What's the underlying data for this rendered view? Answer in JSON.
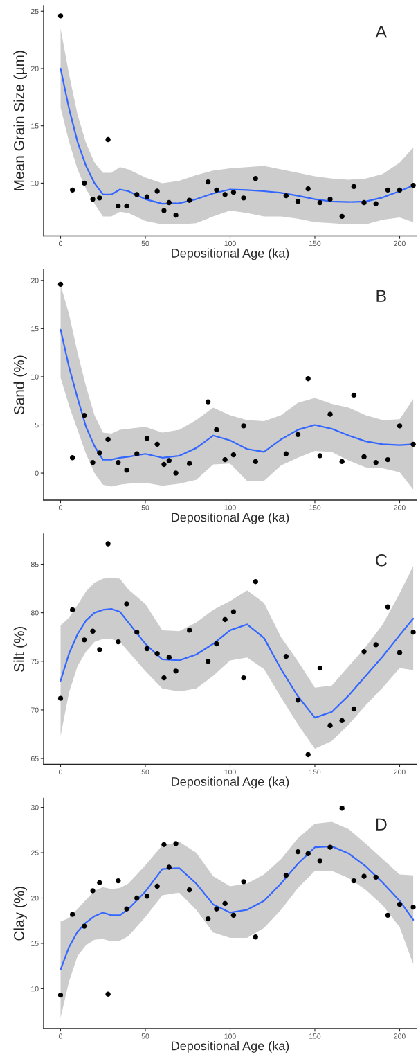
{
  "chart_data": [
    {
      "type": "scatter",
      "xlabel": "Depositional Age (ka)",
      "ylabel": "Mean Grain Size (µm)",
      "annotations": [
        "A"
      ],
      "xlim": [
        -10,
        210
      ],
      "ylim": [
        5.4,
        25.5
      ],
      "xticks": [
        0,
        50,
        100,
        150,
        200
      ],
      "yticks": [
        10,
        15,
        20,
        25
      ],
      "grid": false,
      "series": [
        {
          "type": "line",
          "color": "#3366ff",
          "x": [
            0,
            5,
            10,
            15,
            20,
            25,
            30,
            35,
            40,
            50,
            60,
            70,
            80,
            90,
            100,
            110,
            120,
            130,
            140,
            150,
            160,
            170,
            180,
            190,
            200,
            208
          ],
          "values": [
            20.0,
            16.5,
            13.6,
            11.5,
            10.0,
            9.0,
            9.0,
            9.45,
            9.3,
            8.6,
            8.2,
            8.25,
            8.6,
            9.1,
            9.45,
            9.4,
            9.3,
            9.15,
            8.9,
            8.6,
            8.4,
            8.35,
            8.4,
            8.75,
            9.3,
            9.8
          ],
          "upper": [
            23.5,
            19.5,
            16.0,
            13.5,
            11.8,
            10.9,
            10.9,
            11.4,
            11.2,
            10.5,
            10.0,
            10.2,
            10.7,
            11.1,
            11.3,
            11.4,
            11.5,
            11.2,
            10.9,
            10.6,
            10.4,
            10.3,
            10.4,
            10.8,
            11.8,
            13.1
          ],
          "lower": [
            16.6,
            13.6,
            11.2,
            9.5,
            8.2,
            7.1,
            7.1,
            7.5,
            7.4,
            6.7,
            6.4,
            6.4,
            6.5,
            7.1,
            7.6,
            7.4,
            7.1,
            7.1,
            6.9,
            6.6,
            6.5,
            6.4,
            6.4,
            6.8,
            7.0,
            6.6
          ]
        },
        {
          "marker": "circle",
          "color": "#000000",
          "x": [
            0,
            7,
            14,
            19,
            23,
            28,
            34,
            39,
            45,
            51,
            57,
            61,
            64,
            68,
            76,
            87,
            92,
            97,
            102,
            108,
            115,
            133,
            140,
            146,
            153,
            159,
            166,
            173,
            179,
            186,
            193,
            200,
            208
          ],
          "values": [
            24.6,
            9.4,
            10.0,
            8.6,
            8.7,
            13.8,
            8.0,
            8.0,
            9.0,
            8.8,
            9.3,
            7.6,
            8.3,
            7.2,
            8.5,
            10.1,
            9.4,
            9.0,
            9.2,
            8.7,
            10.4,
            8.9,
            8.4,
            9.5,
            8.3,
            8.6,
            7.1,
            9.7,
            8.3,
            8.2,
            9.4,
            9.4,
            9.8
          ]
        }
      ]
    },
    {
      "type": "scatter",
      "xlabel": "Depositional Age (ka)",
      "ylabel": "Sand (%)",
      "annotations": [
        "B"
      ],
      "xlim": [
        -10,
        210
      ],
      "ylim": [
        -2.8,
        21.1
      ],
      "xticks": [
        0,
        50,
        100,
        150,
        200
      ],
      "yticks": [
        0,
        5,
        10,
        15,
        20
      ],
      "grid": false,
      "series": [
        {
          "type": "line",
          "color": "#3366ff",
          "x": [
            0,
            5,
            10,
            15,
            20,
            25,
            30,
            35,
            40,
            50,
            60,
            70,
            80,
            90,
            100,
            110,
            120,
            130,
            140,
            150,
            160,
            170,
            180,
            190,
            200,
            208
          ],
          "values": [
            14.9,
            11.0,
            7.8,
            4.8,
            2.8,
            1.4,
            1.4,
            1.6,
            1.7,
            2.0,
            1.6,
            1.8,
            2.6,
            3.9,
            3.4,
            2.5,
            2.2,
            3.5,
            4.5,
            5.0,
            4.6,
            3.9,
            3.3,
            3.0,
            2.9,
            3.0
          ],
          "upper": [
            19.5,
            16.5,
            12.5,
            9.0,
            6.0,
            4.2,
            4.1,
            4.5,
            4.6,
            4.8,
            4.2,
            4.5,
            5.5,
            6.8,
            6.0,
            5.5,
            5.4,
            6.0,
            7.3,
            7.8,
            7.2,
            6.8,
            6.0,
            5.5,
            5.6,
            7.7
          ],
          "lower": [
            9.9,
            7.0,
            4.5,
            2.0,
            0.0,
            -1.2,
            -1.4,
            -1.2,
            -1.1,
            -1.0,
            -1.3,
            -1.1,
            -0.7,
            0.9,
            1.0,
            -0.8,
            -0.8,
            0.8,
            1.6,
            2.3,
            2.2,
            1.3,
            0.6,
            0.5,
            0.1,
            -1.7
          ]
        },
        {
          "marker": "circle",
          "color": "#000000",
          "x": [
            0,
            7,
            14,
            19,
            23,
            28,
            34,
            39,
            45,
            51,
            57,
            61,
            64,
            68,
            76,
            87,
            92,
            97,
            102,
            108,
            115,
            133,
            140,
            146,
            153,
            159,
            166,
            173,
            179,
            186,
            193,
            200,
            208
          ],
          "values": [
            19.6,
            1.6,
            6.0,
            1.1,
            2.1,
            3.5,
            1.1,
            0.3,
            2.0,
            3.6,
            3.0,
            0.9,
            1.3,
            0.0,
            1.0,
            7.4,
            4.5,
            1.4,
            1.9,
            4.9,
            1.2,
            2.0,
            4.0,
            9.8,
            1.8,
            6.1,
            1.2,
            8.1,
            1.7,
            1.1,
            1.4,
            4.9,
            3.0
          ]
        }
      ]
    },
    {
      "type": "scatter",
      "xlabel": "Depositional Age (ka)",
      "ylabel": "Silt (%)",
      "annotations": [
        "C"
      ],
      "xlim": [
        -10,
        210
      ],
      "ylim": [
        64.4,
        88.1
      ],
      "xticks": [
        0,
        50,
        100,
        150,
        200
      ],
      "yticks": [
        65,
        70,
        75,
        80,
        85
      ],
      "grid": false,
      "series": [
        {
          "type": "line",
          "color": "#3366ff",
          "x": [
            0,
            5,
            10,
            15,
            20,
            25,
            30,
            35,
            40,
            50,
            60,
            70,
            80,
            90,
            100,
            110,
            120,
            130,
            140,
            150,
            160,
            170,
            180,
            190,
            200,
            208
          ],
          "values": [
            73.0,
            75.8,
            77.8,
            79.2,
            80.0,
            80.3,
            80.4,
            80.1,
            79.0,
            76.8,
            75.2,
            75.1,
            75.7,
            76.8,
            78.2,
            78.8,
            77.4,
            74.2,
            71.4,
            69.2,
            69.8,
            71.5,
            73.5,
            75.5,
            77.7,
            79.4
          ],
          "upper": [
            78.7,
            79.5,
            80.8,
            82.2,
            83.1,
            83.5,
            83.6,
            83.5,
            82.4,
            80.9,
            78.2,
            78.1,
            79.0,
            80.3,
            81.2,
            82.3,
            81.0,
            77.5,
            75.0,
            72.3,
            72.5,
            74.5,
            76.5,
            78.8,
            82.0,
            84.8
          ],
          "lower": [
            67.3,
            71.8,
            74.5,
            76.0,
            77.0,
            77.3,
            77.3,
            77.0,
            76.0,
            74.0,
            72.2,
            71.9,
            72.2,
            73.5,
            75.1,
            75.4,
            74.2,
            71.3,
            68.5,
            66.0,
            66.8,
            68.5,
            70.5,
            72.3,
            74.3,
            74.1
          ]
        },
        {
          "marker": "circle",
          "color": "#000000",
          "x": [
            0,
            7,
            14,
            19,
            23,
            28,
            34,
            39,
            45,
            51,
            57,
            61,
            64,
            68,
            76,
            87,
            92,
            97,
            102,
            108,
            115,
            133,
            140,
            146,
            153,
            159,
            166,
            173,
            179,
            186,
            193,
            200,
            208
          ],
          "values": [
            71.2,
            80.3,
            77.2,
            78.1,
            76.2,
            87.1,
            77.0,
            80.9,
            78.0,
            76.3,
            75.8,
            73.3,
            75.4,
            74.0,
            78.2,
            75.0,
            76.8,
            79.3,
            80.1,
            73.3,
            83.2,
            75.5,
            71.0,
            65.4,
            74.3,
            68.4,
            68.9,
            70.1,
            76.0,
            76.7,
            80.6,
            75.9,
            78.0
          ]
        }
      ]
    },
    {
      "type": "scatter",
      "xlabel": "Depositional Age (ka)",
      "ylabel": "Clay (%)",
      "annotations": [
        "D"
      ],
      "xlim": [
        -10,
        210
      ],
      "ylim": [
        5.6,
        31.0
      ],
      "xticks": [
        0,
        50,
        100,
        150,
        200
      ],
      "yticks": [
        10,
        15,
        20,
        25,
        30
      ],
      "grid": false,
      "series": [
        {
          "type": "line",
          "color": "#3366ff",
          "x": [
            0,
            5,
            10,
            15,
            20,
            25,
            30,
            35,
            40,
            50,
            60,
            70,
            80,
            90,
            100,
            110,
            120,
            130,
            140,
            150,
            160,
            170,
            180,
            190,
            200,
            208
          ],
          "values": [
            12.1,
            14.6,
            16.3,
            17.3,
            18.0,
            18.4,
            18.1,
            18.1,
            18.8,
            20.7,
            23.2,
            23.3,
            21.6,
            19.3,
            18.4,
            18.7,
            19.7,
            21.6,
            23.8,
            25.6,
            25.7,
            24.9,
            23.5,
            21.7,
            19.7,
            17.6
          ],
          "upper": [
            17.4,
            17.8,
            18.8,
            19.8,
            20.8,
            21.2,
            21.0,
            21.1,
            21.6,
            23.6,
            25.8,
            26.2,
            25.0,
            22.4,
            21.3,
            21.6,
            22.6,
            24.3,
            26.6,
            28.2,
            28.4,
            27.6,
            26.0,
            24.3,
            22.6,
            22.5
          ],
          "lower": [
            6.8,
            10.8,
            13.6,
            14.8,
            15.4,
            15.5,
            15.2,
            15.3,
            15.8,
            17.9,
            20.3,
            20.6,
            18.7,
            16.2,
            15.6,
            15.6,
            16.7,
            18.7,
            21.1,
            23.0,
            23.0,
            22.2,
            20.9,
            19.2,
            16.8,
            12.7
          ]
        },
        {
          "marker": "circle",
          "color": "#000000",
          "x": [
            0,
            7,
            14,
            19,
            23,
            28,
            34,
            39,
            45,
            51,
            57,
            61,
            64,
            68,
            76,
            87,
            92,
            97,
            102,
            108,
            115,
            133,
            140,
            146,
            153,
            159,
            166,
            173,
            179,
            186,
            193,
            200,
            208
          ],
          "values": [
            9.3,
            18.2,
            16.9,
            20.8,
            21.7,
            9.4,
            21.9,
            18.8,
            20.0,
            20.2,
            21.3,
            25.9,
            23.4,
            26.0,
            20.9,
            17.7,
            18.8,
            19.4,
            18.1,
            21.8,
            15.7,
            22.5,
            25.1,
            24.9,
            24.1,
            25.6,
            29.9,
            21.9,
            22.4,
            22.3,
            18.1,
            19.3,
            19.0
          ]
        }
      ]
    }
  ]
}
